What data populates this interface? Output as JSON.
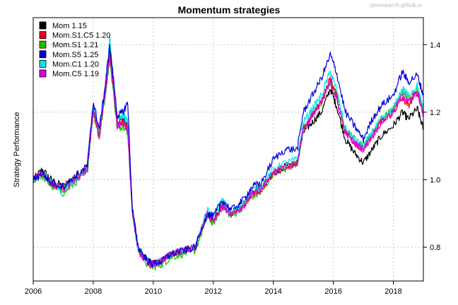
{
  "watermark": "qtsresearch.github.io",
  "chart_data": {
    "type": "line",
    "title": "Momentum strategies",
    "xlabel": "",
    "ylabel": "Strategy Performance",
    "x_ticks": [
      "2006",
      "2008",
      "2010",
      "2012",
      "2014",
      "2016",
      "2018"
    ],
    "y_ticks": [
      "0.8",
      "1.0",
      "1.2",
      "1.4"
    ],
    "xlim": [
      2006.0,
      2019.0
    ],
    "ylim": [
      0.7,
      1.48
    ],
    "grid": true,
    "legend_position": "top-left",
    "x": [
      2006.0,
      2006.3,
      2006.6,
      2007.0,
      2007.4,
      2007.8,
      2008.0,
      2008.2,
      2008.4,
      2008.55,
      2008.8,
      2009.0,
      2009.15,
      2009.3,
      2009.5,
      2009.8,
      2010.0,
      2010.3,
      2010.6,
      2011.0,
      2011.4,
      2011.8,
      2012.0,
      2012.3,
      2012.6,
      2013.0,
      2013.3,
      2013.6,
      2014.0,
      2014.4,
      2014.8,
      2015.0,
      2015.3,
      2015.6,
      2015.9,
      2016.1,
      2016.4,
      2016.7,
      2017.0,
      2017.3,
      2017.6,
      2018.0,
      2018.3,
      2018.5,
      2018.8,
      2019.0
    ],
    "series": [
      {
        "name": "Mom 1.15",
        "color": "#000000",
        "values": [
          1.0,
          1.03,
          1.0,
          0.98,
          1.01,
          1.04,
          1.22,
          1.14,
          1.27,
          1.38,
          1.17,
          1.18,
          1.16,
          0.92,
          0.8,
          0.76,
          0.75,
          0.76,
          0.78,
          0.79,
          0.8,
          0.9,
          0.88,
          0.93,
          0.9,
          0.93,
          0.97,
          0.98,
          1.02,
          1.04,
          1.05,
          1.14,
          1.17,
          1.2,
          1.27,
          1.22,
          1.12,
          1.08,
          1.05,
          1.09,
          1.13,
          1.16,
          1.2,
          1.18,
          1.21,
          1.15
        ]
      },
      {
        "name": "Mom.S1.C5 1.20",
        "color": "#e8001c",
        "values": [
          1.0,
          1.02,
          0.99,
          0.97,
          1.0,
          1.03,
          1.21,
          1.13,
          1.26,
          1.37,
          1.16,
          1.17,
          1.15,
          0.91,
          0.79,
          0.76,
          0.75,
          0.76,
          0.78,
          0.79,
          0.8,
          0.9,
          0.88,
          0.93,
          0.9,
          0.92,
          0.96,
          0.97,
          1.02,
          1.04,
          1.05,
          1.15,
          1.19,
          1.23,
          1.3,
          1.25,
          1.14,
          1.11,
          1.09,
          1.13,
          1.17,
          1.2,
          1.24,
          1.22,
          1.26,
          1.2
        ]
      },
      {
        "name": "Mom.S1 1.21",
        "color": "#22bb00",
        "values": [
          1.0,
          1.01,
          0.98,
          0.96,
          0.99,
          1.02,
          1.2,
          1.12,
          1.25,
          1.36,
          1.15,
          1.16,
          1.14,
          0.9,
          0.79,
          0.75,
          0.74,
          0.75,
          0.77,
          0.78,
          0.79,
          0.89,
          0.87,
          0.92,
          0.89,
          0.92,
          0.95,
          0.96,
          1.02,
          1.03,
          1.05,
          1.15,
          1.19,
          1.23,
          1.29,
          1.25,
          1.15,
          1.12,
          1.1,
          1.14,
          1.18,
          1.21,
          1.26,
          1.24,
          1.27,
          1.21
        ]
      },
      {
        "name": "Mom.S5 1.25",
        "color": "#0000dd",
        "values": [
          1.0,
          1.02,
          0.99,
          0.98,
          1.01,
          1.04,
          1.23,
          1.15,
          1.28,
          1.4,
          1.19,
          1.2,
          1.23,
          0.91,
          0.8,
          0.76,
          0.75,
          0.76,
          0.78,
          0.79,
          0.8,
          0.9,
          0.89,
          0.94,
          0.91,
          0.94,
          0.98,
          0.99,
          1.06,
          1.09,
          1.09,
          1.2,
          1.25,
          1.3,
          1.37,
          1.32,
          1.2,
          1.16,
          1.12,
          1.18,
          1.22,
          1.25,
          1.32,
          1.29,
          1.31,
          1.25
        ]
      },
      {
        "name": "Mom.C1 1.20",
        "color": "#00e8e8",
        "values": [
          1.0,
          1.02,
          0.99,
          0.97,
          1.0,
          1.03,
          1.22,
          1.14,
          1.27,
          1.42,
          1.18,
          1.19,
          1.17,
          0.92,
          0.8,
          0.76,
          0.75,
          0.76,
          0.78,
          0.79,
          0.8,
          0.91,
          0.89,
          0.94,
          0.9,
          0.93,
          0.97,
          0.98,
          1.03,
          1.05,
          1.06,
          1.17,
          1.21,
          1.25,
          1.32,
          1.27,
          1.15,
          1.12,
          1.1,
          1.14,
          1.18,
          1.21,
          1.27,
          1.25,
          1.28,
          1.2
        ]
      },
      {
        "name": "Mom.C5 1.19",
        "color": "#e000e0",
        "values": [
          1.0,
          1.02,
          0.99,
          0.97,
          1.0,
          1.03,
          1.21,
          1.13,
          1.26,
          1.37,
          1.16,
          1.17,
          1.15,
          0.91,
          0.79,
          0.75,
          0.75,
          0.76,
          0.78,
          0.79,
          0.8,
          0.9,
          0.88,
          0.92,
          0.9,
          0.92,
          0.96,
          0.97,
          1.02,
          1.04,
          1.05,
          1.15,
          1.19,
          1.23,
          1.29,
          1.24,
          1.14,
          1.11,
          1.09,
          1.13,
          1.17,
          1.2,
          1.25,
          1.23,
          1.26,
          1.19
        ]
      }
    ]
  }
}
